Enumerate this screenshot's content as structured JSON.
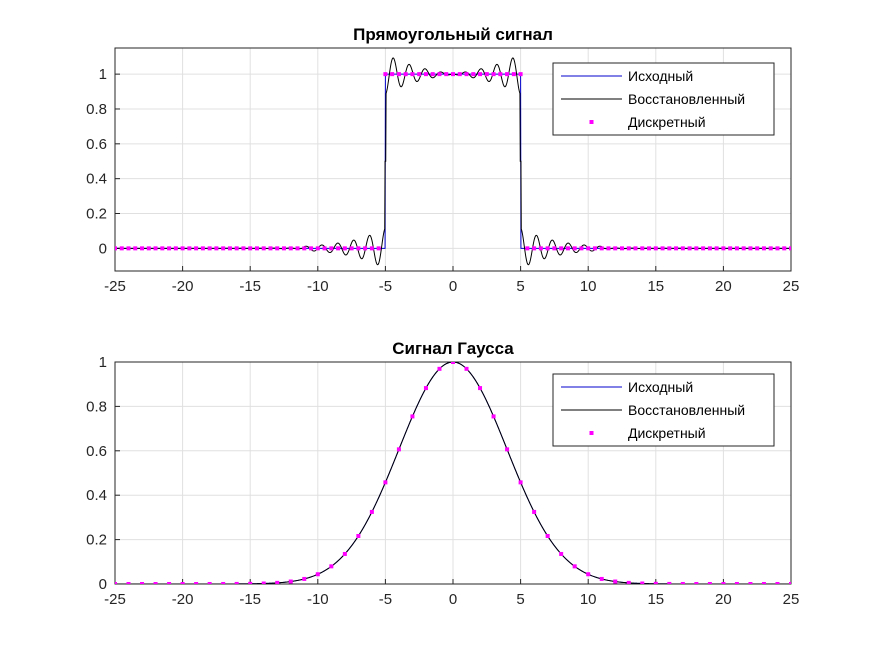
{
  "chart_data": [
    {
      "type": "line",
      "title": "Прямоугольный сигнал",
      "xlim": [
        -25,
        25
      ],
      "ylim": [
        -0.13,
        1.15
      ],
      "xticks": [
        -25,
        -20,
        -15,
        -10,
        -5,
        0,
        5,
        10,
        15,
        20,
        25
      ],
      "xtick_labels": [
        "-25",
        "-20",
        "-15",
        "-10",
        "-5",
        "0",
        "5",
        "10",
        "15",
        "20",
        "25"
      ],
      "yticks": [
        0,
        0.2,
        0.4,
        0.6,
        0.8,
        1
      ],
      "ytick_labels": [
        "0",
        "0.2",
        "0.4",
        "0.6",
        "0.8",
        "1"
      ],
      "grid": true,
      "legend_position": "top-right",
      "series": [
        {
          "name": "Исходный",
          "style": "line",
          "color": "#0000cc",
          "function": "rect",
          "half_width": 5
        },
        {
          "name": "Восстановленный",
          "style": "line",
          "color": "#000000",
          "function": "rect_gibbs",
          "half_width": 5,
          "ringing_amplitude": 0.12
        },
        {
          "name": "Дискретный",
          "style": "markers",
          "color": "#ff00ff",
          "function": "rect",
          "half_width": 5,
          "sample_step": 0.5
        }
      ]
    },
    {
      "type": "line",
      "title": "Сигнал Гаусса",
      "xlim": [
        -25,
        25
      ],
      "ylim": [
        0,
        1
      ],
      "xticks": [
        -25,
        -20,
        -15,
        -10,
        -5,
        0,
        5,
        10,
        15,
        20,
        25
      ],
      "xtick_labels": [
        "-25",
        "-20",
        "-15",
        "-10",
        "-5",
        "0",
        "5",
        "10",
        "15",
        "20",
        "25"
      ],
      "yticks": [
        0,
        0.2,
        0.4,
        0.6,
        0.8,
        1
      ],
      "ytick_labels": [
        "0",
        "0.2",
        "0.4",
        "0.6",
        "0.8",
        "1"
      ],
      "grid": true,
      "legend_position": "top-right",
      "series": [
        {
          "name": "Исходный",
          "style": "line",
          "color": "#0000cc",
          "function": "gauss",
          "sigma": 4
        },
        {
          "name": "Восстановленный",
          "style": "line",
          "color": "#000000",
          "function": "gauss",
          "sigma": 4
        },
        {
          "name": "Дискретный",
          "style": "markers",
          "color": "#ff00ff",
          "function": "gauss",
          "sigma": 4,
          "sample_step": 1
        }
      ]
    }
  ]
}
